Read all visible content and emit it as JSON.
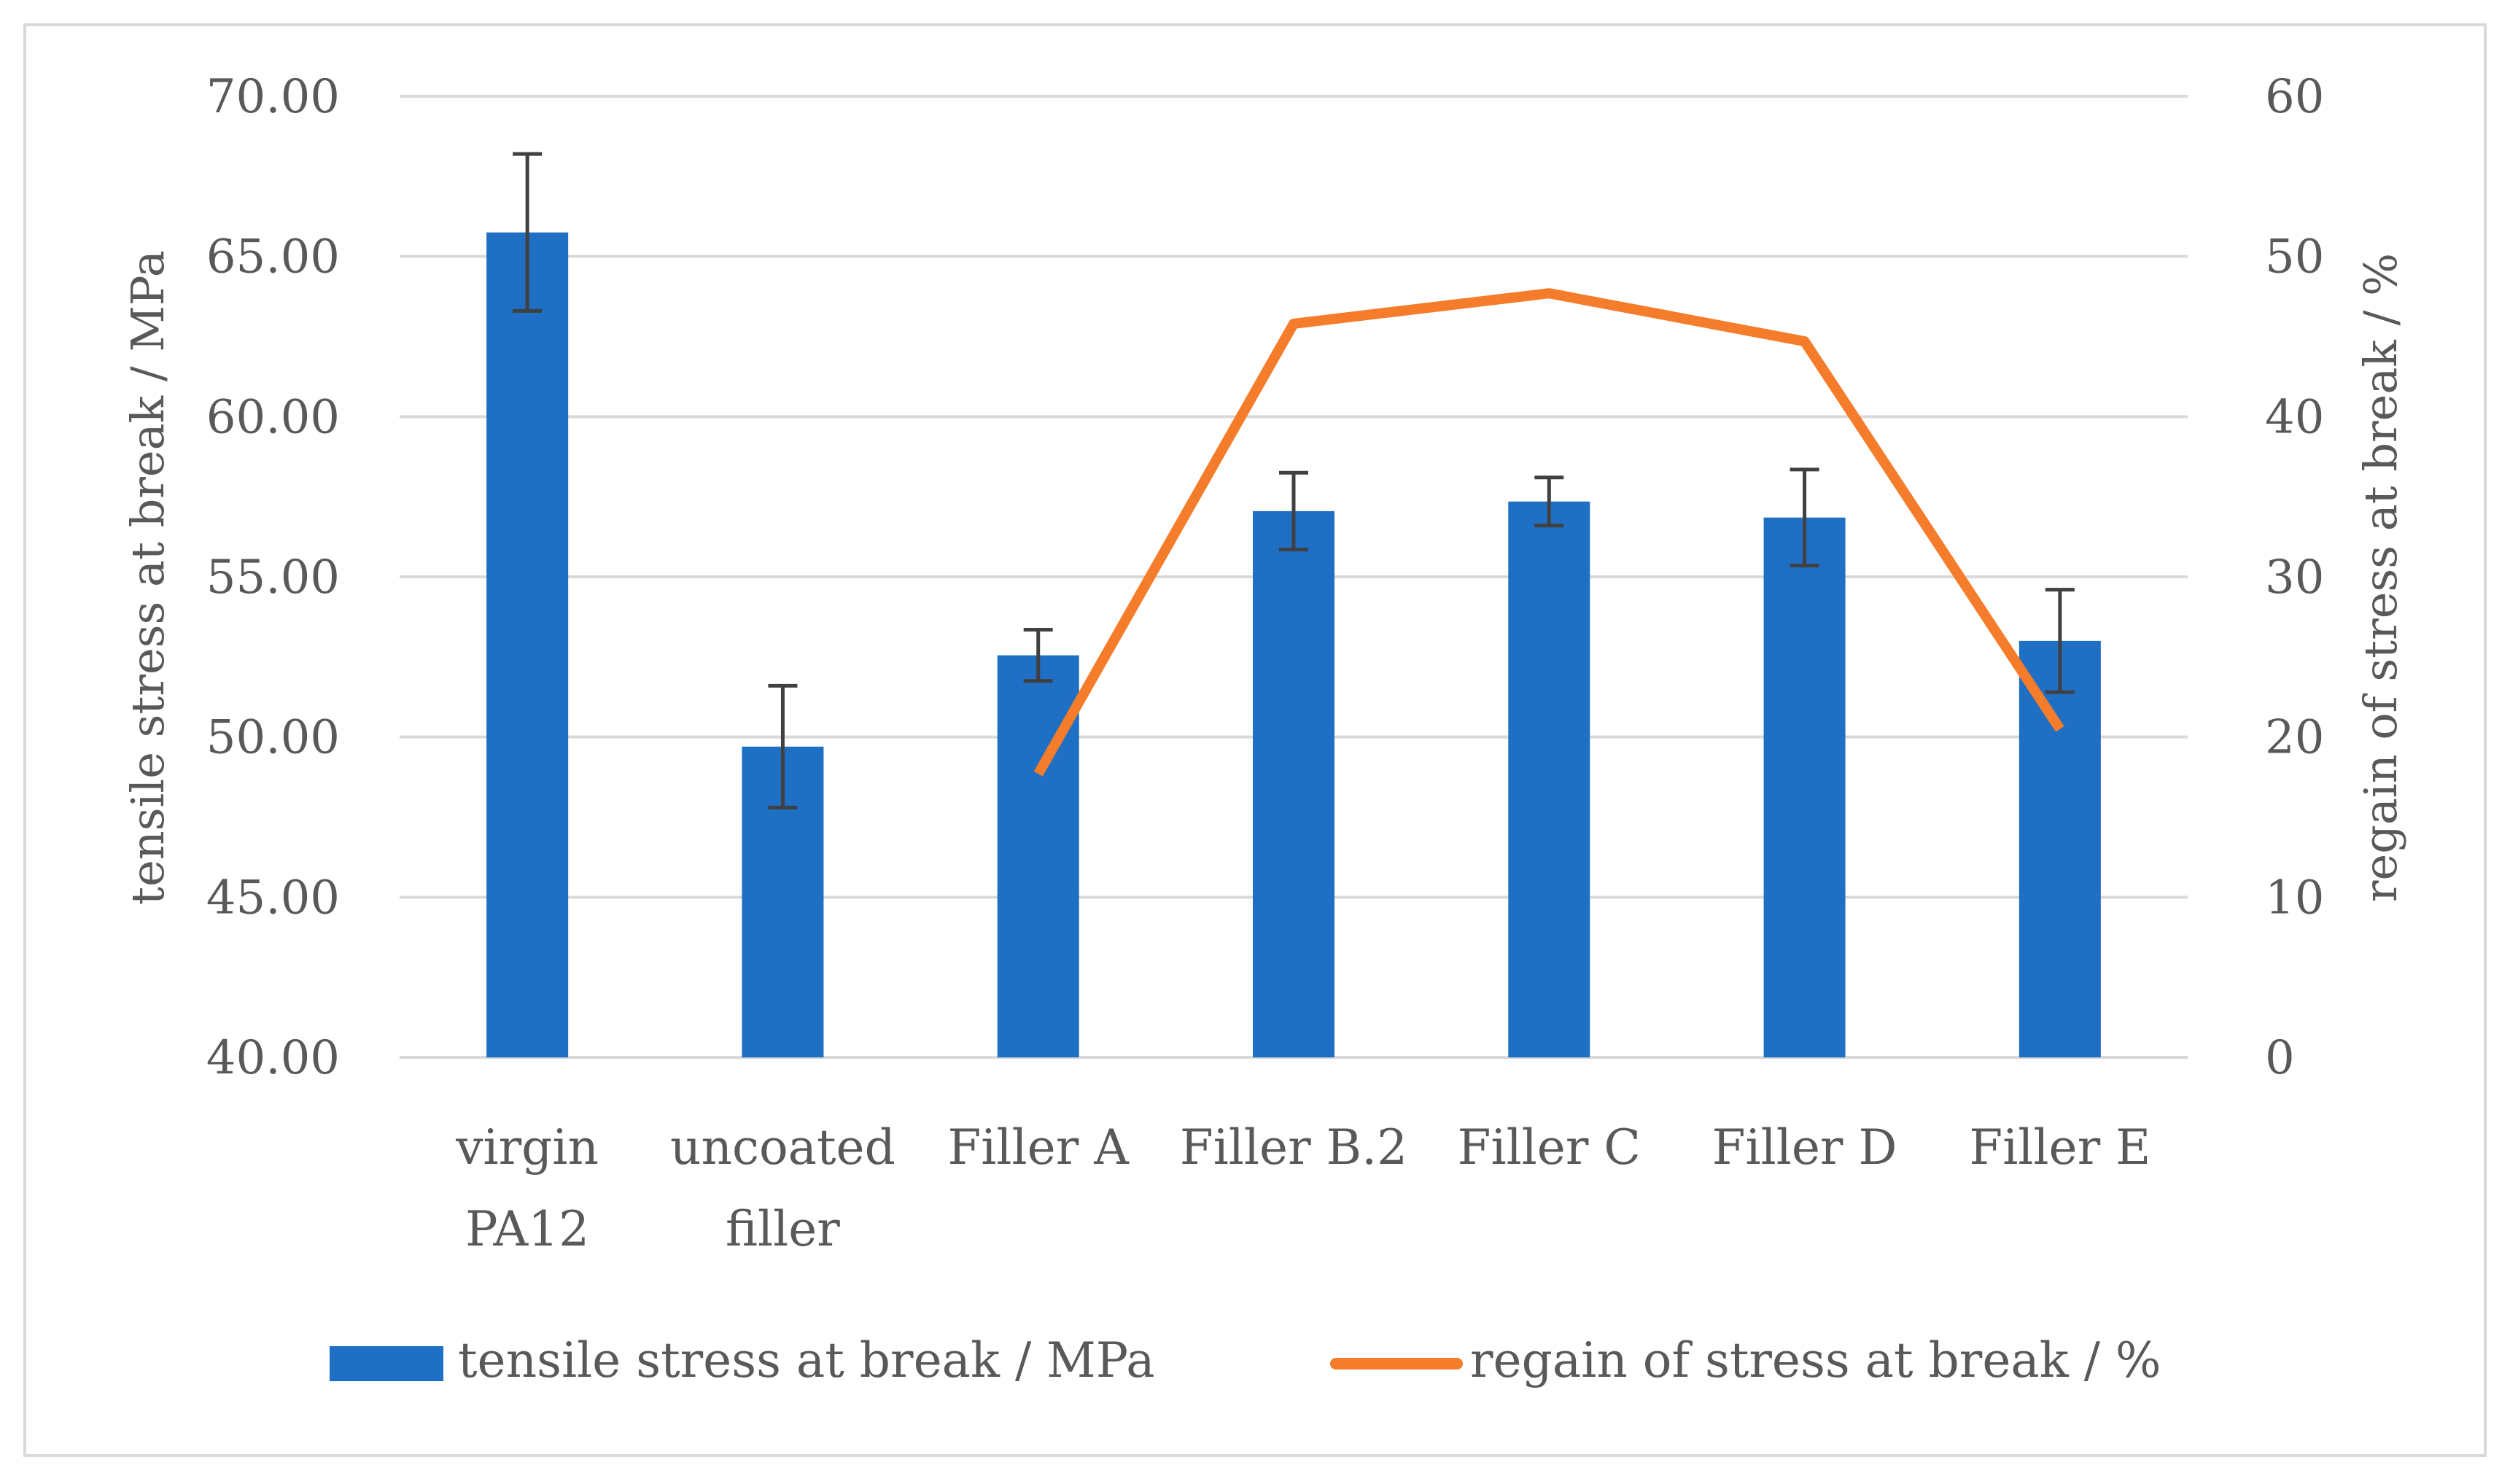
{
  "chart_data": {
    "type": "bar",
    "categories": [
      [
        "virgin",
        "PA12"
      ],
      [
        "uncoated",
        "filler"
      ],
      [
        "Filler A"
      ],
      [
        "Filler B.2"
      ],
      [
        "Filler C"
      ],
      [
        "Filler D"
      ],
      [
        "Filler E"
      ]
    ],
    "series": [
      {
        "name": "tensile stress at break / MPa",
        "type": "bar",
        "axis": "left",
        "color": "#1f6fc4",
        "values": [
          65.75,
          49.7,
          52.55,
          57.05,
          57.35,
          56.85,
          53.0
        ],
        "errors": [
          2.45,
          1.9,
          0.8,
          1.2,
          0.75,
          1.5,
          1.6
        ]
      },
      {
        "name": "regain of stress at break / %",
        "type": "line",
        "axis": "right",
        "color": "#f47c2a",
        "values": [
          null,
          null,
          17.7,
          45.8,
          47.7,
          44.7,
          20.5
        ]
      }
    ],
    "ylabel": "tensile stress at break / MPa",
    "y2label": "regain of stress at break / %",
    "ylim": [
      40,
      70
    ],
    "y2lim": [
      0,
      60
    ],
    "yticks": [
      "70.00",
      "65.00",
      "60.00",
      "55.00",
      "50.00",
      "45.00",
      "40.00"
    ],
    "y2ticks": [
      "60",
      "50",
      "40",
      "30",
      "20",
      "10",
      "0"
    ],
    "grid": true,
    "legend": "bottom",
    "colors": {
      "grid": "#d9d9d9",
      "text": "#595959",
      "errorbar": "#404040",
      "frame": "#d9d9d9"
    }
  }
}
